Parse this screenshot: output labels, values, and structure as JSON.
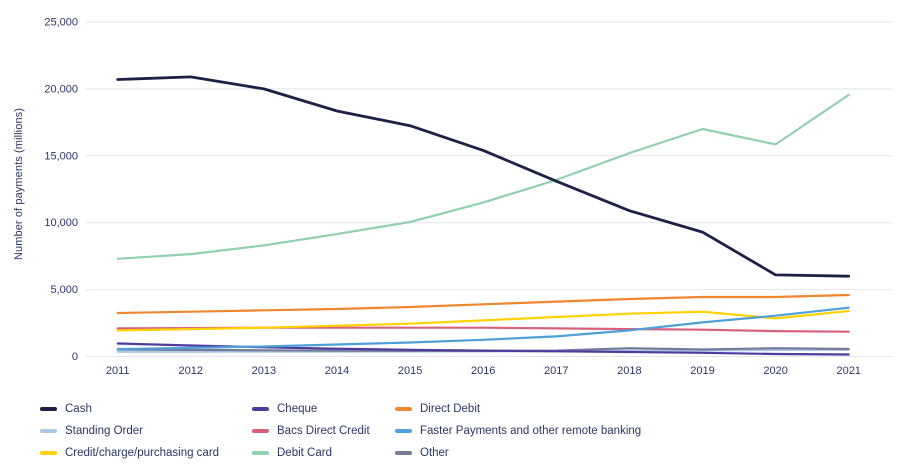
{
  "chart_data": {
    "type": "line",
    "title": "",
    "ylabel": "Number of payments (millions)",
    "x": [
      2011,
      2012,
      2013,
      2014,
      2015,
      2016,
      2017,
      2018,
      2019,
      2020,
      2021
    ],
    "ylim": [
      0,
      25000
    ],
    "ytick_step": 5000,
    "ytick_labels": [
      "0",
      "5,000",
      "10,000",
      "15,000",
      "20,000",
      "25,000"
    ],
    "grid": "horizontal",
    "gridline_color": "#e4e5ee",
    "axis_text_color": "#2c3565",
    "legend_position": "bottom",
    "draw_order": [
      3,
      8,
      1,
      4,
      6,
      5,
      2,
      7,
      0
    ],
    "series": [
      {
        "name": "Cash",
        "color": "#1c2145",
        "values": [
          20700,
          20900,
          20000,
          18350,
          17250,
          15400,
          13100,
          10900,
          9300,
          6100,
          6000
        ]
      },
      {
        "name": "Cheque",
        "color": "#4b3c9e",
        "values": [
          970,
          820,
          690,
          580,
          500,
          440,
          390,
          340,
          280,
          190,
          150
        ]
      },
      {
        "name": "Direct Debit",
        "color": "#f0862e",
        "values": [
          3250,
          3350,
          3450,
          3550,
          3700,
          3900,
          4100,
          4300,
          4450,
          4450,
          4600
        ]
      },
      {
        "name": "Standing Order",
        "color": "#a9c9e5",
        "values": [
          350,
          355,
          360,
          365,
          375,
          385,
          400,
          430,
          450,
          490,
          500
        ]
      },
      {
        "name": "Bacs Direct Credit",
        "color": "#d9607b",
        "values": [
          2100,
          2120,
          2150,
          2150,
          2150,
          2150,
          2100,
          2050,
          2000,
          1900,
          1850
        ]
      },
      {
        "name": "Faster Payments and other remote banking",
        "color": "#4f9fd8",
        "values": [
          550,
          650,
          750,
          900,
          1050,
          1250,
          1500,
          1950,
          2550,
          3050,
          3650
        ]
      },
      {
        "name": "Credit/charge/purchasing card",
        "color": "#ffd200",
        "values": [
          1950,
          2050,
          2150,
          2300,
          2450,
          2700,
          2950,
          3200,
          3350,
          2850,
          3400
        ]
      },
      {
        "name": "Debit Card",
        "color": "#8fd0ae",
        "values": [
          7300,
          7650,
          8300,
          9150,
          10050,
          11500,
          13200,
          15200,
          17000,
          15850,
          19550
        ]
      },
      {
        "name": "Other",
        "color": "#757a9b",
        "values": [
          520,
          490,
          460,
          440,
          420,
          410,
          440,
          620,
          520,
          620,
          560
        ]
      }
    ]
  }
}
